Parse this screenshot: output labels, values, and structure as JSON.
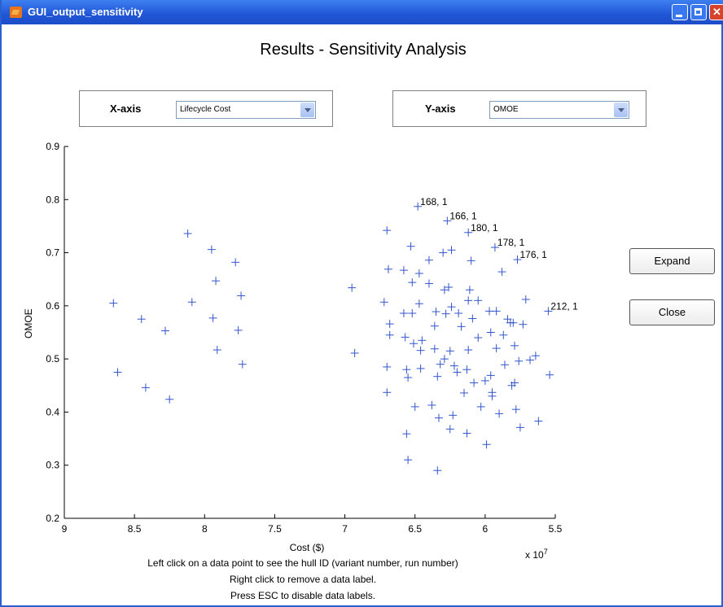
{
  "window": {
    "title": "GUI_output_sensitivity",
    "heading": "Results - Sensitivity Analysis"
  },
  "controls": {
    "x_axis": {
      "label": "X-axis",
      "selected": "Lifecycle Cost"
    },
    "y_axis": {
      "label": "Y-axis",
      "selected": "OMOE"
    },
    "expand_label": "Expand",
    "close_label": "Close"
  },
  "instructions": [
    "Left click on a data point to see the hull ID (variant number, run number)",
    "Right click to remove a data label.",
    "Press ESC to disable data labels."
  ],
  "chart_data": {
    "type": "scatter",
    "xlabel": "Cost ($)",
    "ylabel": "OMOE",
    "x_multiplier": "x 10^7",
    "x_reversed": true,
    "xlim": [
      9,
      5.5
    ],
    "ylim": [
      0.2,
      0.9
    ],
    "xticks": [
      9,
      8.5,
      8,
      7.5,
      7,
      6.5,
      6,
      5.5
    ],
    "yticks": [
      0.2,
      0.3,
      0.4,
      0.5,
      0.6,
      0.7,
      0.8,
      0.9
    ],
    "marker": "+",
    "color": "#3355cc",
    "points": [
      [
        8.65,
        0.605
      ],
      [
        8.62,
        0.475
      ],
      [
        8.45,
        0.575
      ],
      [
        8.42,
        0.446
      ],
      [
        8.28,
        0.553
      ],
      [
        8.25,
        0.424
      ],
      [
        8.12,
        0.736
      ],
      [
        8.09,
        0.607
      ],
      [
        7.95,
        0.706
      ],
      [
        7.94,
        0.577
      ],
      [
        7.92,
        0.647
      ],
      [
        7.91,
        0.517
      ],
      [
        7.78,
        0.682
      ],
      [
        7.76,
        0.554
      ],
      [
        7.74,
        0.619
      ],
      [
        7.73,
        0.49
      ],
      [
        6.95,
        0.634
      ],
      [
        6.93,
        0.511
      ],
      [
        6.72,
        0.607
      ],
      [
        6.7,
        0.742
      ],
      [
        6.7,
        0.485
      ],
      [
        6.7,
        0.437
      ],
      [
        6.69,
        0.669
      ],
      [
        6.68,
        0.566
      ],
      [
        6.68,
        0.545
      ],
      [
        6.58,
        0.667
      ],
      [
        6.58,
        0.586
      ],
      [
        6.57,
        0.541
      ],
      [
        6.56,
        0.48
      ],
      [
        6.56,
        0.359
      ],
      [
        6.55,
        0.31
      ],
      [
        6.55,
        0.465
      ],
      [
        6.53,
        0.712
      ],
      [
        6.52,
        0.644
      ],
      [
        6.52,
        0.586
      ],
      [
        6.51,
        0.529
      ],
      [
        6.5,
        0.41
      ],
      [
        6.48,
        0.787
      ],
      [
        6.47,
        0.661
      ],
      [
        6.47,
        0.604
      ],
      [
        6.46,
        0.516
      ],
      [
        6.46,
        0.482
      ],
      [
        6.45,
        0.535
      ],
      [
        6.4,
        0.686
      ],
      [
        6.4,
        0.642
      ],
      [
        6.38,
        0.413
      ],
      [
        6.36,
        0.562
      ],
      [
        6.36,
        0.519
      ],
      [
        6.35,
        0.589
      ],
      [
        6.34,
        0.467
      ],
      [
        6.34,
        0.29
      ],
      [
        6.33,
        0.389
      ],
      [
        6.32,
        0.49
      ],
      [
        6.3,
        0.7
      ],
      [
        6.29,
        0.63
      ],
      [
        6.29,
        0.5
      ],
      [
        6.28,
        0.585
      ],
      [
        6.27,
        0.76
      ],
      [
        6.26,
        0.635
      ],
      [
        6.25,
        0.515
      ],
      [
        6.25,
        0.368
      ],
      [
        6.24,
        0.705
      ],
      [
        6.24,
        0.598
      ],
      [
        6.23,
        0.394
      ],
      [
        6.22,
        0.487
      ],
      [
        6.2,
        0.475
      ],
      [
        6.19,
        0.586
      ],
      [
        6.17,
        0.561
      ],
      [
        6.15,
        0.436
      ],
      [
        6.13,
        0.48
      ],
      [
        6.13,
        0.36
      ],
      [
        6.12,
        0.738
      ],
      [
        6.12,
        0.61
      ],
      [
        6.12,
        0.517
      ],
      [
        6.11,
        0.63
      ],
      [
        6.1,
        0.685
      ],
      [
        6.09,
        0.576
      ],
      [
        6.08,
        0.455
      ],
      [
        6.05,
        0.54
      ],
      [
        6.05,
        0.61
      ],
      [
        6.03,
        0.41
      ],
      [
        6.0,
        0.459
      ],
      [
        5.99,
        0.339
      ],
      [
        5.97,
        0.59
      ],
      [
        5.96,
        0.469
      ],
      [
        5.96,
        0.55
      ],
      [
        5.95,
        0.437
      ],
      [
        5.95,
        0.43
      ],
      [
        5.93,
        0.71
      ],
      [
        5.92,
        0.59
      ],
      [
        5.92,
        0.52
      ],
      [
        5.9,
        0.397
      ],
      [
        5.88,
        0.664
      ],
      [
        5.87,
        0.545
      ],
      [
        5.86,
        0.489
      ],
      [
        5.84,
        0.575
      ],
      [
        5.82,
        0.568
      ],
      [
        5.81,
        0.45
      ],
      [
        5.8,
        0.568
      ],
      [
        5.79,
        0.455
      ],
      [
        5.79,
        0.525
      ],
      [
        5.78,
        0.405
      ],
      [
        5.77,
        0.687
      ],
      [
        5.76,
        0.496
      ],
      [
        5.75,
        0.371
      ],
      [
        5.73,
        0.565
      ],
      [
        5.71,
        0.612
      ],
      [
        5.68,
        0.498
      ],
      [
        5.64,
        0.506
      ],
      [
        5.62,
        0.383
      ],
      [
        5.55,
        0.59
      ],
      [
        5.54,
        0.47
      ]
    ],
    "annotations": [
      {
        "text": "168, 1",
        "x": 6.48,
        "y": 0.787
      },
      {
        "text": "166, 1",
        "x": 6.27,
        "y": 0.76
      },
      {
        "text": "180, 1",
        "x": 6.12,
        "y": 0.738
      },
      {
        "text": "178, 1",
        "x": 5.93,
        "y": 0.71
      },
      {
        "text": "176, 1",
        "x": 5.77,
        "y": 0.687
      },
      {
        "text": "212, 1",
        "x": 5.55,
        "y": 0.59
      }
    ]
  }
}
